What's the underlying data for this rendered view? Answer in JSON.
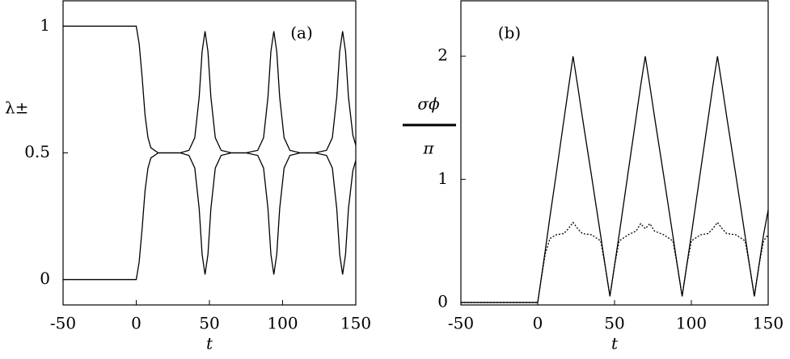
{
  "chart_data": [
    {
      "type": "line",
      "panel_label": "(a)",
      "xlabel": "t",
      "ylabel": [
        "λ±"
      ],
      "x": [
        -50,
        0,
        2,
        4,
        6,
        8,
        10,
        15,
        20,
        30,
        36,
        40,
        43,
        45,
        47,
        49,
        51,
        54,
        58,
        65,
        75,
        83,
        87,
        90,
        92,
        94,
        96,
        98,
        101,
        105,
        112,
        122,
        130,
        134,
        137,
        139,
        141,
        143,
        145,
        148,
        150
      ],
      "xlim": [
        -50,
        150
      ],
      "xticks": [
        -50,
        0,
        50,
        100,
        150
      ],
      "ylim": [
        -0.1,
        1.1
      ],
      "yticks": [
        0,
        0.5,
        1
      ],
      "series": [
        {
          "color": "#000000",
          "dashed": false,
          "values": [
            1,
            1,
            0.93,
            0.8,
            0.65,
            0.56,
            0.52,
            0.5,
            0.5,
            0.5,
            0.51,
            0.56,
            0.72,
            0.9,
            0.98,
            0.9,
            0.72,
            0.56,
            0.51,
            0.5,
            0.5,
            0.51,
            0.56,
            0.72,
            0.9,
            0.98,
            0.9,
            0.72,
            0.56,
            0.51,
            0.5,
            0.5,
            0.51,
            0.56,
            0.72,
            0.9,
            0.98,
            0.9,
            0.72,
            0.57,
            0.53
          ]
        },
        {
          "color": "#000000",
          "dashed": false,
          "values": [
            0,
            0,
            0.07,
            0.2,
            0.35,
            0.44,
            0.48,
            0.5,
            0.5,
            0.5,
            0.49,
            0.44,
            0.28,
            0.1,
            0.02,
            0.1,
            0.28,
            0.44,
            0.49,
            0.5,
            0.5,
            0.49,
            0.44,
            0.28,
            0.1,
            0.02,
            0.1,
            0.28,
            0.44,
            0.49,
            0.5,
            0.5,
            0.49,
            0.44,
            0.28,
            0.1,
            0.02,
            0.1,
            0.28,
            0.43,
            0.47
          ]
        }
      ]
    },
    {
      "type": "line",
      "panel_label": "(b)",
      "xlabel": "t",
      "ylabel": [
        "σϕ",
        "π"
      ],
      "x": [
        -50,
        0,
        2,
        5,
        8,
        12,
        17,
        20,
        23,
        26,
        29,
        35,
        41,
        44,
        47,
        50,
        53,
        59,
        64,
        67,
        70,
        73,
        76,
        82,
        88,
        91,
        94,
        97,
        100,
        106,
        111,
        114,
        117,
        120,
        123,
        129,
        135,
        138,
        141,
        144,
        147,
        150
      ],
      "xlim": [
        -50,
        150
      ],
      "xticks": [
        -50,
        0,
        50,
        100,
        150
      ],
      "ylim": [
        -0.02,
        2.45
      ],
      "yticks": [
        0,
        1,
        2
      ],
      "series": [
        {
          "color": "#000000",
          "dashed": false,
          "values": [
            0,
            0,
            0.17,
            0.43,
            0.7,
            1.04,
            1.48,
            1.74,
            2,
            1.76,
            1.51,
            1.03,
            0.54,
            0.29,
            0.05,
            0.3,
            0.55,
            1.07,
            1.5,
            1.76,
            2,
            1.76,
            1.51,
            1.03,
            0.54,
            0.29,
            0.05,
            0.3,
            0.55,
            1.07,
            1.5,
            1.76,
            2,
            1.76,
            1.51,
            1.03,
            0.54,
            0.29,
            0.05,
            0.3,
            0.55,
            0.75
          ]
        },
        {
          "color": "#000000",
          "dashed": true,
          "values": [
            0,
            0,
            0.17,
            0.4,
            0.52,
            0.55,
            0.56,
            0.6,
            0.65,
            0.6,
            0.56,
            0.55,
            0.5,
            0.29,
            0.05,
            0.3,
            0.5,
            0.55,
            0.58,
            0.64,
            0.6,
            0.64,
            0.58,
            0.55,
            0.5,
            0.29,
            0.05,
            0.3,
            0.5,
            0.55,
            0.56,
            0.6,
            0.65,
            0.6,
            0.56,
            0.55,
            0.5,
            0.29,
            0.05,
            0.3,
            0.5,
            0.55
          ]
        }
      ]
    }
  ]
}
